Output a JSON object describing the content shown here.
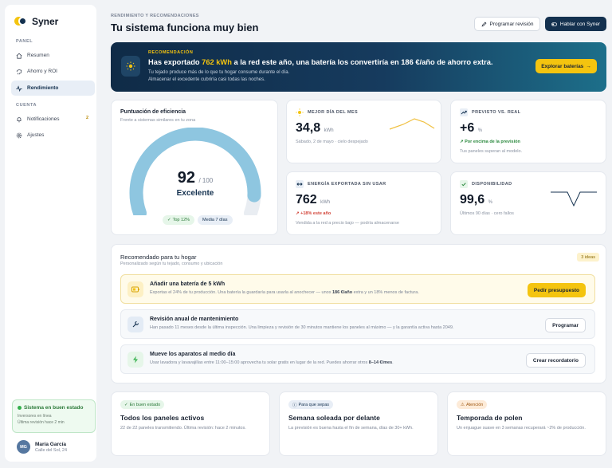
{
  "sidebar": {
    "brand": "Syner",
    "section_panel": "PANEL",
    "items": [
      {
        "label": "Resumen",
        "icon": "home-icon"
      },
      {
        "label": "Ahorro y ROI",
        "icon": "piggy-bank-icon"
      },
      {
        "label": "Rendimiento",
        "icon": "activity-icon",
        "active": true
      }
    ],
    "section_account": "CUENTA",
    "account_items": [
      {
        "label": "Notificaciones",
        "icon": "bell-icon",
        "badge": "2"
      },
      {
        "label": "Ajustes",
        "icon": "gear-icon"
      }
    ],
    "status": {
      "title": "Sistema en buen estado",
      "line1": "Inversores en línea",
      "line2": "Última revisión hace 2 min"
    },
    "user": {
      "initials": "MG",
      "name": "María García",
      "address": "Calle del Sol, 24"
    }
  },
  "header": {
    "eyebrow": "RENDIMIENTO Y RECOMENDACIONES",
    "title": "Tu sistema funciona muy bien",
    "btn_schedule": "Programar revisión",
    "btn_talk": "Hablar con Syner"
  },
  "banner": {
    "eyebrow": "RECOMENDACIÓN",
    "title_pre": "Has exportado ",
    "title_hl": "762 kWh",
    "title_post": " a la red este año, una batería los convertiría en 186 €/año de ahorro extra.",
    "sub1": "Tu tejado produce más de lo que tu hogar consume durante el día.",
    "sub2": "Almacenar el excedente cubriría casi todas las noches.",
    "button": "Explorar baterías",
    "button_arrow": "→"
  },
  "efficiency": {
    "title": "Puntuación de eficiencia",
    "subtitle": "Frente a sistemas similares en tu zona",
    "score": "92",
    "max": "/ 100",
    "score_fraction": 0.92,
    "label": "Excelente",
    "chip_top": "Top 12%",
    "chip_avg": "Media 7 días"
  },
  "metrics": [
    {
      "label": "MEJOR DÍA DEL MES",
      "value": "34,8",
      "unit": "kWh",
      "sub": "Sábado, 2 de mayo · cielo despejado",
      "icon": "sun-icon"
    },
    {
      "label": "PREVISTO VS. REAL",
      "value": "+6",
      "unit": "%",
      "trend": "↗ Por encima de la previsión",
      "sub": "Tus paneles superan al modelo.",
      "icon": "trend-up-icon"
    },
    {
      "label": "ENERGÍA EXPORTADA SIN USAR",
      "value": "762",
      "unit": "kWh",
      "trend": "↗ +18% este año",
      "sub": "Vendida a la red a precio bajo — podría almacenarse",
      "icon": "export-icon"
    },
    {
      "label": "DISPONIBILIDAD",
      "value": "99,6",
      "unit": "%",
      "sub": "Últimos 90 días · cero fallos",
      "icon": "shield-check-icon"
    }
  ],
  "recommendations": {
    "title": "Recomendado para tu hogar",
    "subtitle": "Personalizado según tu tejado, consumo y ubicación",
    "badge": "3 ideas",
    "items": [
      {
        "name": "Añadir una batería de 5 kWh",
        "desc_pre": "Exportas el 24% de tu producción. Una batería la guardaría para usarla al anochecer — unos ",
        "desc_b": "186 €/año",
        "desc_post": " extra y un 18% menos de factura.",
        "button": "Pedir presupuesto",
        "icon": "battery-icon"
      },
      {
        "name": "Revisión anual de mantenimiento",
        "desc_pre": "Han pasado 11 meses desde la última inspección. Una limpieza y revisión de 30 minutos mantiene los paneles al máximo — y la garantía activa hasta 2049.",
        "desc_b": "",
        "desc_post": "",
        "button": "Programar",
        "icon": "wrench-icon"
      },
      {
        "name": "Mueve los aparatos al medio día",
        "desc_pre": "Usar lavadora y lavavajillas entre 11:00–15:00 aprovecha tu solar gratis en lugar de la red. Puedes ahorrar otros ",
        "desc_b": "8–14 €/mes",
        "desc_post": ".",
        "button": "Crear recordatorio",
        "icon": "bolt-icon"
      }
    ]
  },
  "bottom_cards": [
    {
      "chip": "En buen estado",
      "title": "Todos los paneles activos",
      "text": "22 de 22 paneles transmitiendo. Última revisión: hace 2 minutos."
    },
    {
      "chip": "Para que sepas",
      "title": "Semana soleada por delante",
      "text": "La previsión es buena hasta el fin de semana, días de 30+ kWh."
    },
    {
      "chip": "Atención",
      "title": "Temporada de polen",
      "text": "Un enjuague suave en 3 semanas recuperará ~2% de producción."
    }
  ],
  "colors": {
    "accent": "#f4c40f",
    "brand": "#14314f",
    "success": "#2c8a3f",
    "danger": "#d2453a"
  }
}
